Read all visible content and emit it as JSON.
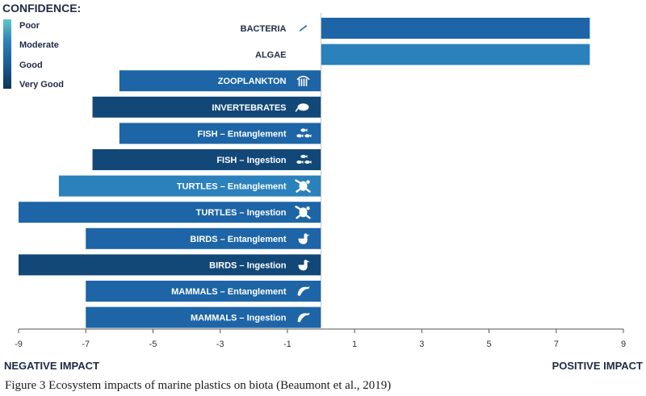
{
  "chart_data": {
    "type": "bar",
    "orientation": "horizontal",
    "title": "",
    "categories": [
      "BACTERIA",
      "ALGAE",
      "ZOOPLANKTON",
      "INVERTEBRATES",
      "FISH – Entanglement",
      "FISH – Ingestion",
      "TURTLES – Entanglement",
      "TURTLES – Ingestion",
      "BIRDS – Entanglement",
      "BIRDS – Ingestion",
      "MAMMALS – Entanglement",
      "MAMMALS – Ingestion"
    ],
    "values": [
      8,
      8,
      -6,
      -6.8,
      -6,
      -6.8,
      -7.8,
      -9,
      -7,
      -9,
      -7,
      -7
    ],
    "confidence": [
      "Good",
      "Moderate",
      "Good",
      "Very Good",
      "Good",
      "Very Good",
      "Moderate",
      "Good",
      "Good",
      "Very Good",
      "Good",
      "Good"
    ],
    "icons": [
      "bacteria-icon",
      "algae-icon",
      "zooplankton-icon",
      "invertebrate-icon",
      "fish-icon",
      "fish-icon",
      "turtle-icon",
      "turtle-icon",
      "bird-icon",
      "bird-icon",
      "dolphin-icon",
      "dolphin-icon"
    ],
    "xlim": [
      -9,
      9
    ],
    "xticks": [
      -9,
      -7,
      -5,
      -3,
      -1,
      1,
      3,
      5,
      7,
      9
    ],
    "xlabel_negative": "NEGATIVE IMPACT",
    "xlabel_positive": "POSITIVE IMPACT",
    "grid": false,
    "legend": {
      "title": "CONFIDENCE:",
      "placement": "top-left",
      "entries": [
        "Poor",
        "Moderate",
        "Good",
        "Very Good"
      ],
      "gradient": [
        "#5fc4c8",
        "#2a7fb5",
        "#1a5a93",
        "#0f3556"
      ]
    },
    "colors": {
      "Poor": "#4aa8c9",
      "Moderate": "#2b81bb",
      "Good": "#1d65a6",
      "Very Good": "#124878"
    }
  },
  "caption": "Figure 3 Ecosystem impacts of marine plastics on biota (Beaumont et al., 2019)"
}
